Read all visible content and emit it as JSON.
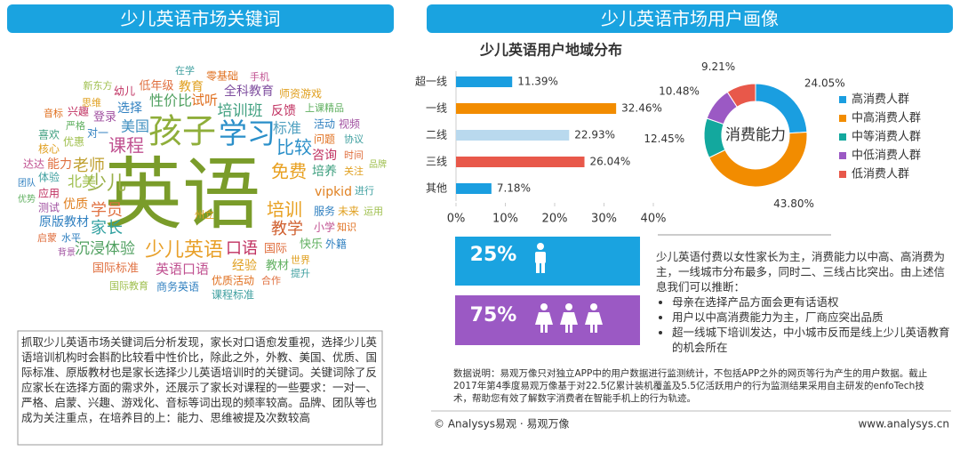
{
  "left": {
    "title": "少儿英语市场关键词",
    "word_cloud": [
      "英语",
      "孩子",
      "学习",
      "少儿英语",
      "少儿",
      "课程",
      "老师",
      "北美",
      "免费",
      "比较",
      "培训班",
      "培训",
      "教学",
      "家长",
      "学员",
      "美国",
      "全科教育",
      "性价比",
      "试听",
      "师资游戏",
      "反馈",
      "上课精品",
      "标准",
      "活动",
      "视频",
      "问题",
      "咨询",
      "培养",
      "vipkid",
      "进行",
      "服务",
      "未来",
      "运用",
      "小学",
      "知识",
      "快乐",
      "外籍",
      "国际",
      "世界",
      "口语",
      "经验",
      "教材",
      "提升",
      "合作",
      "英语口语",
      "商务英语",
      "优质活动",
      "课程标准",
      "沉浸体验",
      "国际标准",
      "国际教育",
      "原版教材",
      "优质",
      "应用",
      "测试",
      "优势",
      "团队",
      "体验",
      "达达",
      "能力",
      "核心",
      "喜欢",
      "音标",
      "兴趣",
      "严格",
      "优惠",
      "思维",
      "登录",
      "选择",
      "幼儿",
      "低年级",
      "新东方",
      "在学",
      "教育",
      "零基础",
      "手机",
      "时间",
      "品牌",
      "关注",
      "协议",
      "启蒙",
      "水平",
      "背景",
      "州立",
      "对一"
    ],
    "text": "抓取少儿英语市场关键词后分析发现，家长对口语愈发重视，选择少儿英语培训机构时会斟酌比较看中性价比，除此之外，外教、美国、优质、国际标准、原版教材也是家长选择少儿英语培训时的关键词。关键词除了反应家长在选择方面的需求外，还展示了家长对课程的一些要求：一对一、严格、启蒙、兴趣、游戏化、音标等词出现的频率较高。品牌、团队等也成为关注重点，在培养目的上：能力、思维被提及次数较高"
  },
  "right": {
    "title": "少儿英语市场用户画像",
    "gender": {
      "male": "25%",
      "female": "75%"
    },
    "summary": "少儿英语付费以女性家长为主，消费能力以中高、高消费为主，一线城市分布最多，同时二、三线占比突出。由上述信息我们可以推断：",
    "bullets": [
      "母亲在选择产品方面会更有话语权",
      "用户以中高消费能力为主，厂商应突出品质",
      "超一线城下培训发达，中小城市反而是线上少儿英语教育的机会所在"
    ],
    "note": "数据说明：易观万像只对独立APP中的用户数据进行监测统计，不包括APP之外的网页等行为产生的用户数据。截止2017年第4季度易观万像基于对22.5亿累计装机覆盖及5.5亿活跃用户的行为监测结果采用自主研发的enfoTech技术，帮助您有效了解数字消费者在智能手机上的行为轨迹。",
    "footer_left": "© Analysys易观 · 易观万像",
    "footer_right": "www.analysys.cn"
  },
  "chart_data": [
    {
      "type": "bar",
      "orientation": "horizontal",
      "title": "少儿英语用户地域分布",
      "categories": [
        "超一线",
        "一线",
        "二线",
        "三线",
        "其他"
      ],
      "values": [
        11.39,
        32.46,
        22.93,
        26.04,
        7.18
      ],
      "value_labels": [
        "11.39%",
        "32.46%",
        "22.93%",
        "26.04%",
        "7.18%"
      ],
      "colors": [
        "#1a9ee0",
        "#f28c00",
        "#b9d9ee",
        "#e8584a",
        "#1a9ee0"
      ],
      "xlim": [
        0,
        40
      ],
      "xticks": [
        {
          "value": 0,
          "label": "0%"
        },
        {
          "value": 10,
          "label": "10%"
        },
        {
          "value": 20,
          "label": "20%"
        },
        {
          "value": 30,
          "label": "30%"
        },
        {
          "value": 40,
          "label": "40%"
        }
      ]
    },
    {
      "type": "pie",
      "donut": true,
      "center_label": "消费能力",
      "categories": [
        "高消费人群",
        "中高消费人群",
        "中等消费人群",
        "中低消费人群",
        "低消费人群"
      ],
      "values": [
        24.05,
        43.8,
        12.45,
        10.48,
        9.21
      ],
      "value_labels": [
        "24.05%",
        "43.80%",
        "12.45%",
        "10.48%",
        "9.21%"
      ],
      "colors": [
        "#1a9ee0",
        "#f28c00",
        "#13a89e",
        "#9b59c4",
        "#e8584a"
      ],
      "legend": "right"
    }
  ]
}
